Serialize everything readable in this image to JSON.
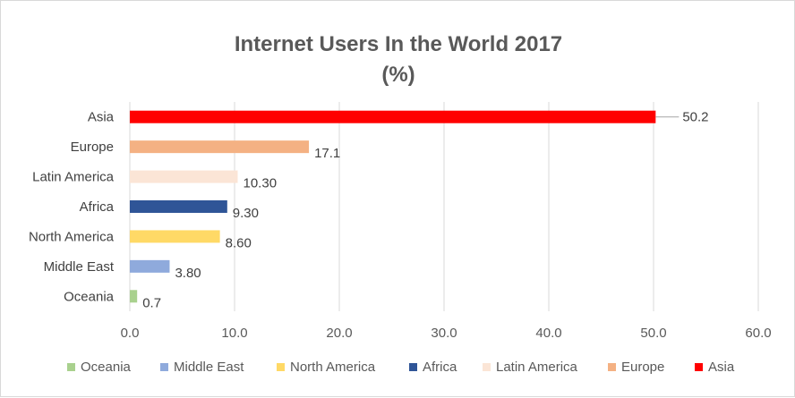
{
  "chart_data": {
    "type": "bar",
    "orientation": "horizontal",
    "title": "Internet Users In the World 2017",
    "subtitle": "(%)",
    "categories": [
      "Asia",
      "Europe",
      "Latin America",
      "Africa",
      "North America",
      "Middle East",
      "Oceania"
    ],
    "values": [
      50.2,
      17.1,
      10.3,
      9.3,
      8.6,
      3.8,
      0.7
    ],
    "data_labels": [
      "50.2",
      "17.1",
      "10.30",
      "9.30",
      "8.60",
      "3.80",
      "0.7"
    ],
    "colors": [
      "#ff0000",
      "#f4b183",
      "#fbe5d6",
      "#2f5597",
      "#ffd966",
      "#8faadc",
      "#a9d18e"
    ],
    "xlim": [
      0,
      60
    ],
    "x_ticks": [
      "0.0",
      "10.0",
      "20.0",
      "30.0",
      "40.0",
      "50.0",
      "60.0"
    ],
    "grid": true,
    "legend_position": "bottom",
    "legend": [
      {
        "name": "Oceania",
        "color": "#a9d18e"
      },
      {
        "name": "Middle East",
        "color": "#8faadc"
      },
      {
        "name": "North America",
        "color": "#ffd966"
      },
      {
        "name": "Africa",
        "color": "#2f5597"
      },
      {
        "name": "Latin America",
        "color": "#fbe5d6"
      },
      {
        "name": "Europe",
        "color": "#f4b183"
      },
      {
        "name": "Asia",
        "color": "#ff0000"
      }
    ]
  }
}
